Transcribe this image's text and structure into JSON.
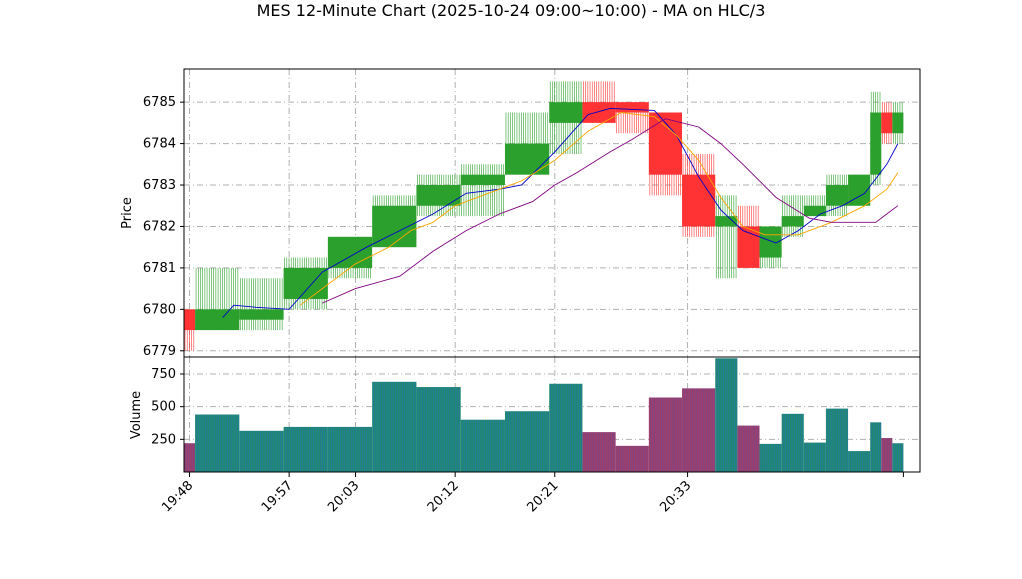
{
  "chart_data": {
    "type": "candlestick",
    "title": "MES 12-Minute Chart (2025-10-24 09:00~10:00) - MA on HLC/3",
    "price_axis": {
      "ylabel": "Price",
      "ylim": [
        6778.85,
        6785.8
      ],
      "ticks": [
        6779,
        6780,
        6781,
        6782,
        6783,
        6784,
        6785
      ],
      "tick_labels": [
        "6779",
        "6780",
        "6781",
        "6782",
        "6783",
        "6784",
        "6785"
      ]
    },
    "volume_axis": {
      "ylabel": "Volume",
      "ylim": [
        0,
        880
      ],
      "ticks": [
        250,
        500,
        750
      ],
      "tick_labels": [
        "250",
        "500",
        "750"
      ]
    },
    "x_axis": {
      "tick_labels": [
        "19:48",
        "19:57",
        "20:03",
        "20:12",
        "20:21",
        "20:33"
      ],
      "tick_times": [
        0,
        9,
        15,
        24,
        33,
        45
      ]
    },
    "grid": true,
    "colors": {
      "up": "#2ca02c",
      "down": "#ff3333",
      "ma_fast": "#0000cc",
      "ma_mid": "#ffa500",
      "ma_slow": "#800080",
      "vol_up": "#1f8a70",
      "vol_down": "#9e3f6a"
    },
    "candles": [
      {
        "start": 0,
        "end": 1,
        "open": 6780.0,
        "high": 6780.0,
        "low": 6779.0,
        "close": 6779.5,
        "volume": 220
      },
      {
        "start": 1,
        "end": 5,
        "open": 6779.5,
        "high": 6781.0,
        "low": 6779.5,
        "close": 6780.0,
        "volume": 440
      },
      {
        "start": 5,
        "end": 9,
        "open": 6779.75,
        "high": 6780.75,
        "low": 6779.5,
        "close": 6780.0,
        "volume": 315
      },
      {
        "start": 9,
        "end": 13,
        "open": 6780.25,
        "high": 6781.25,
        "low": 6780.0,
        "close": 6781.0,
        "volume": 345
      },
      {
        "start": 13,
        "end": 17,
        "open": 6781.0,
        "high": 6781.75,
        "low": 6780.75,
        "close": 6781.75,
        "volume": 345
      },
      {
        "start": 17,
        "end": 21,
        "open": 6781.5,
        "high": 6782.75,
        "low": 6781.5,
        "close": 6782.5,
        "volume": 690
      },
      {
        "start": 21,
        "end": 25,
        "open": 6782.5,
        "high": 6783.25,
        "low": 6782.25,
        "close": 6783.0,
        "volume": 650
      },
      {
        "start": 25,
        "end": 29,
        "open": 6783.0,
        "high": 6783.5,
        "low": 6782.25,
        "close": 6783.25,
        "volume": 400
      },
      {
        "start": 29,
        "end": 33,
        "open": 6783.25,
        "high": 6784.75,
        "low": 6783.25,
        "close": 6784.0,
        "volume": 465
      },
      {
        "start": 33,
        "end": 36,
        "open": 6784.5,
        "high": 6785.5,
        "low": 6783.75,
        "close": 6785.0,
        "volume": 675
      },
      {
        "start": 36,
        "end": 39,
        "open": 6785.0,
        "high": 6785.5,
        "low": 6784.5,
        "close": 6784.5,
        "volume": 305
      },
      {
        "start": 39,
        "end": 42,
        "open": 6785.0,
        "high": 6785.0,
        "low": 6784.25,
        "close": 6784.75,
        "volume": 200
      },
      {
        "start": 42,
        "end": 45,
        "open": 6784.75,
        "high": 6784.75,
        "low": 6782.75,
        "close": 6783.25,
        "volume": 570
      },
      {
        "start": 45,
        "end": 48,
        "open": 6783.25,
        "high": 6783.75,
        "low": 6781.75,
        "close": 6782.0,
        "volume": 640
      },
      {
        "start": 48,
        "end": 50,
        "open": 6782.0,
        "high": 6782.75,
        "low": 6780.75,
        "close": 6782.25,
        "volume": 870
      },
      {
        "start": 50,
        "end": 52,
        "open": 6782.0,
        "high": 6782.5,
        "low": 6781.0,
        "close": 6781.0,
        "volume": 355
      },
      {
        "start": 52,
        "end": 54,
        "open": 6781.25,
        "high": 6782.0,
        "low": 6781.0,
        "close": 6782.0,
        "volume": 215
      },
      {
        "start": 54,
        "end": 56,
        "open": 6782.0,
        "high": 6782.75,
        "low": 6781.75,
        "close": 6782.25,
        "volume": 445
      },
      {
        "start": 56,
        "end": 58,
        "open": 6782.25,
        "high": 6782.75,
        "low": 6782.25,
        "close": 6782.5,
        "volume": 225
      },
      {
        "start": 58,
        "end": 60,
        "open": 6782.5,
        "high": 6783.25,
        "low": 6782.25,
        "close": 6783.0,
        "volume": 485
      },
      {
        "start": 60,
        "end": 62,
        "open": 6782.5,
        "high": 6783.25,
        "low": 6782.5,
        "close": 6783.25,
        "volume": 160
      },
      {
        "start": 62,
        "end": 63,
        "open": 6783.25,
        "high": 6785.25,
        "low": 6783.0,
        "close": 6784.75,
        "volume": 380
      },
      {
        "start": 63,
        "end": 64,
        "open": 6784.75,
        "high": 6785.0,
        "low": 6784.0,
        "close": 6784.25,
        "volume": 260
      },
      {
        "start": 64,
        "end": 65,
        "open": 6784.25,
        "high": 6785.0,
        "low": 6784.0,
        "close": 6784.75,
        "volume": 220
      }
    ],
    "series": [
      {
        "color": "#0000cc",
        "points": [
          [
            3,
            6779.8
          ],
          [
            4,
            6780.1
          ],
          [
            6,
            6780.05
          ],
          [
            9,
            6780.0
          ],
          [
            12,
            6780.9
          ],
          [
            16,
            6781.5
          ],
          [
            19,
            6781.9
          ],
          [
            22,
            6782.3
          ],
          [
            25,
            6782.8
          ],
          [
            28,
            6782.9
          ],
          [
            30,
            6783.0
          ],
          [
            33,
            6783.8
          ],
          [
            36,
            6784.7
          ],
          [
            38,
            6784.85
          ],
          [
            42,
            6784.8
          ],
          [
            44,
            6784.2
          ],
          [
            46,
            6783.2
          ],
          [
            48,
            6782.4
          ],
          [
            50,
            6781.9
          ],
          [
            53,
            6781.6
          ],
          [
            55,
            6781.9
          ],
          [
            57,
            6782.3
          ],
          [
            59,
            6782.5
          ],
          [
            61,
            6782.8
          ],
          [
            63,
            6783.5
          ],
          [
            64,
            6784.0
          ]
        ]
      },
      {
        "color": "#ffa500",
        "points": [
          [
            10,
            6780.1
          ],
          [
            12,
            6780.5
          ],
          [
            15,
            6781.1
          ],
          [
            18,
            6781.5
          ],
          [
            20,
            6781.9
          ],
          [
            22,
            6782.1
          ],
          [
            24,
            6782.5
          ],
          [
            27,
            6782.8
          ],
          [
            30,
            6783.1
          ],
          [
            33,
            6783.6
          ],
          [
            36,
            6784.3
          ],
          [
            39,
            6784.75
          ],
          [
            42,
            6784.65
          ],
          [
            44,
            6784.2
          ],
          [
            46,
            6783.6
          ],
          [
            48,
            6782.7
          ],
          [
            50,
            6782.0
          ],
          [
            52,
            6781.8
          ],
          [
            55,
            6781.8
          ],
          [
            58,
            6782.1
          ],
          [
            61,
            6782.5
          ],
          [
            63,
            6782.9
          ],
          [
            64,
            6783.3
          ]
        ]
      },
      {
        "color": "#800080",
        "points": [
          [
            12,
            6780.15
          ],
          [
            15,
            6780.5
          ],
          [
            19,
            6780.8
          ],
          [
            22,
            6781.4
          ],
          [
            25,
            6781.9
          ],
          [
            28,
            6782.3
          ],
          [
            31,
            6782.6
          ],
          [
            33,
            6783.0
          ],
          [
            35,
            6783.3
          ],
          [
            38,
            6783.8
          ],
          [
            40,
            6784.1
          ],
          [
            43,
            6784.6
          ],
          [
            46,
            6784.4
          ],
          [
            48,
            6784.0
          ],
          [
            50,
            6783.5
          ],
          [
            53,
            6782.7
          ],
          [
            56,
            6782.2
          ],
          [
            58,
            6782.1
          ],
          [
            62,
            6782.1
          ],
          [
            63,
            6782.3
          ],
          [
            64,
            6782.5
          ]
        ]
      }
    ]
  }
}
